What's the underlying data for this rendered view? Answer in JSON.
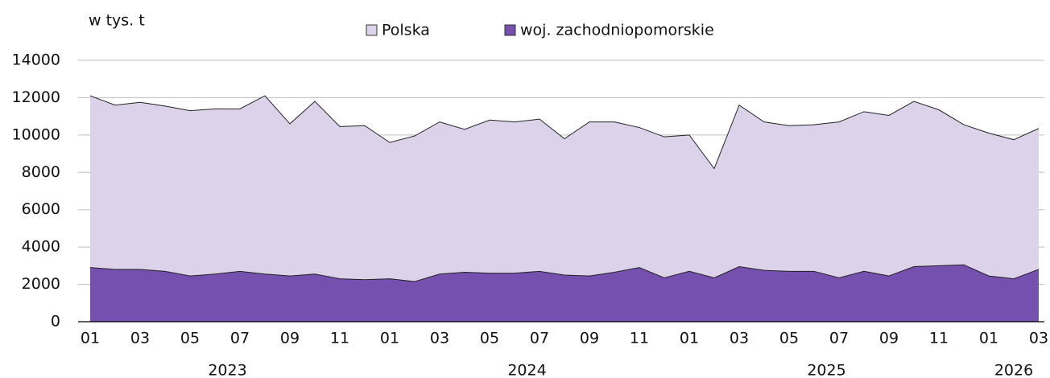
{
  "chart_data": {
    "type": "area",
    "unit_label": "w tys. t",
    "categories": [
      "01",
      null,
      "03",
      null,
      "05",
      null,
      "07",
      null,
      "09",
      null,
      "11",
      null,
      "01",
      null,
      "03",
      null,
      "05",
      null,
      "07",
      null,
      "09",
      null,
      "11",
      null,
      "01",
      null,
      "03",
      null,
      "05",
      null,
      "07",
      null,
      "09",
      null,
      "11",
      null,
      "01",
      null,
      "03"
    ],
    "year_labels": [
      "2023",
      "2024",
      "2025",
      "2026"
    ],
    "series": [
      {
        "name": "Polska",
        "color": "#dcd3ea",
        "values": [
          12100,
          11600,
          11750,
          11550,
          11300,
          11400,
          11400,
          12100,
          10600,
          11800,
          10450,
          10500,
          9600,
          9950,
          10700,
          10300,
          10800,
          10700,
          10850,
          9800,
          10700,
          10700,
          10400,
          9900,
          10000,
          8200,
          11600,
          10700,
          10500,
          10550,
          10700,
          11250,
          11050,
          11800,
          11350,
          10550,
          10100,
          9750,
          10350
        ]
      },
      {
        "name": "woj. zachodniopomorskie",
        "color": "#7650ae",
        "values": [
          2900,
          2800,
          2800,
          2700,
          2450,
          2550,
          2700,
          2550,
          2450,
          2550,
          2300,
          2250,
          2300,
          2150,
          2550,
          2650,
          2600,
          2600,
          2700,
          2500,
          2450,
          2650,
          2900,
          2350,
          2700,
          2350,
          2950,
          2750,
          2700,
          2700,
          2350,
          2700,
          2450,
          2950,
          3000,
          3050,
          2450,
          2300,
          2800
        ]
      }
    ],
    "ylim": [
      0,
      14000
    ],
    "yticks": [
      0,
      2000,
      4000,
      6000,
      8000,
      10000,
      12000,
      14000
    ],
    "grid": true,
    "legend": "top"
  }
}
